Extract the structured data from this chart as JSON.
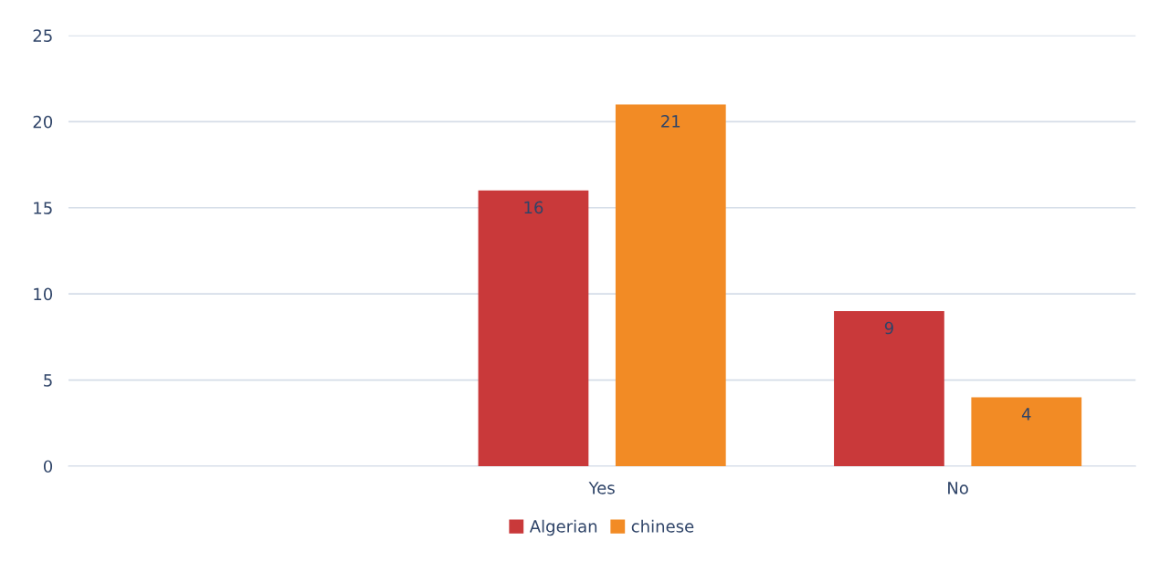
{
  "chart_data": {
    "type": "bar",
    "categories": [
      null,
      "Yes",
      "No"
    ],
    "series": [
      {
        "name": "Algerian",
        "color": "#c9393a",
        "values": [
          null,
          16,
          9
        ]
      },
      {
        "name": "chinese",
        "color": "#f28b25",
        "values": [
          null,
          21,
          4
        ]
      }
    ],
    "ylim": [
      0,
      25
    ],
    "yticks": [
      0,
      5,
      10,
      15,
      20,
      25
    ],
    "grid": "y",
    "legend": "bottom",
    "data_labels": true
  }
}
